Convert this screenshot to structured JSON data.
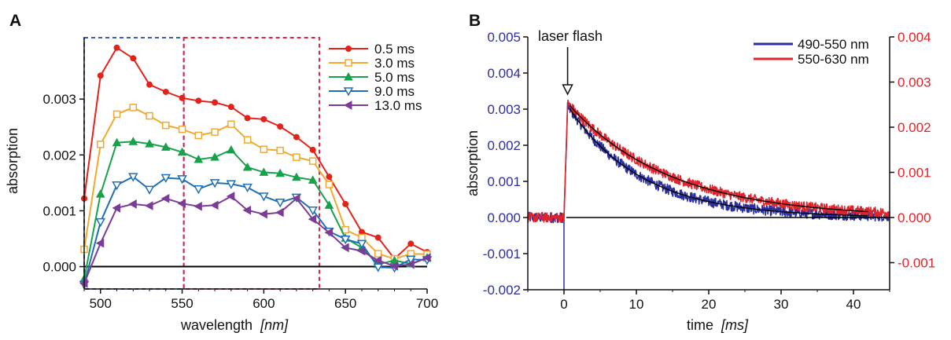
{
  "chart_data": [
    {
      "type": "line",
      "panel_label": "A",
      "xlabel_main": "wavelength",
      "xlabel_unit": "[nm]",
      "ylabel": "absorption",
      "xlim": [
        490,
        700
      ],
      "ylim": [
        -0.0004,
        0.0041
      ],
      "x_ticks": [
        500,
        550,
        600,
        650,
        700
      ],
      "x_tick_labels": [
        "500",
        "550",
        "600",
        "650",
        "700"
      ],
      "y_ticks": [
        0,
        0.001,
        0.002,
        0.003
      ],
      "y_tick_labels": [
        "0.000",
        "0.001",
        "0.002",
        "0.003"
      ],
      "grid": false,
      "legend_position": "top-right",
      "x": [
        490,
        500,
        510,
        520,
        530,
        540,
        550,
        560,
        570,
        580,
        590,
        600,
        610,
        620,
        630,
        640,
        650,
        660,
        670,
        680,
        690,
        700
      ],
      "series": [
        {
          "name": "0.5 ms",
          "color": "#e3231b",
          "marker": "circle",
          "values": [
            0.00122,
            0.00342,
            0.00392,
            0.00373,
            0.00326,
            0.00313,
            0.00302,
            0.00297,
            0.00294,
            0.00286,
            0.00266,
            0.00264,
            0.00251,
            0.00232,
            0.00209,
            0.00161,
            0.00112,
            0.00062,
            0.00052,
            0.00014,
            0.00041,
            0.00026
          ]
        },
        {
          "name": "3.0 ms",
          "color": "#f0a92e",
          "marker": "square",
          "values": [
            0.00031,
            0.00219,
            0.00273,
            0.00285,
            0.0027,
            0.00253,
            0.00246,
            0.00235,
            0.00241,
            0.00255,
            0.00227,
            0.0021,
            0.00208,
            0.00196,
            0.00189,
            0.00147,
            0.00066,
            0.00052,
            0.00023,
            0.00014,
            0.00023,
            0.00022
          ]
        },
        {
          "name": "5.0 ms",
          "color": "#17a14a",
          "marker": "triangle-up",
          "values": [
            -0.00022,
            0.0013,
            0.00222,
            0.00224,
            0.0022,
            0.00214,
            0.00205,
            0.00192,
            0.00196,
            0.00209,
            0.00178,
            0.00169,
            0.00167,
            0.0016,
            0.00155,
            0.0011,
            0.00051,
            0.00034,
            4e-05,
            0.00011,
            5e-05,
            0.00016
          ]
        },
        {
          "name": "9.0 ms",
          "color": "#1f6fb5",
          "marker": "triangle-down",
          "values": [
            -0.00032,
            0.0008,
            0.00146,
            0.00161,
            0.00138,
            0.00159,
            0.00157,
            0.00139,
            0.0015,
            0.00148,
            0.00142,
            0.00126,
            0.00115,
            0.00124,
            0.00101,
            0.00063,
            0.00049,
            0.00041,
            -1e-05,
            -2e-05,
            0.00013,
            0.00012
          ]
        },
        {
          "name": "13.0 ms",
          "color": "#7b3c99",
          "marker": "triangle-left",
          "values": [
            -0.0003,
            0.00042,
            0.00105,
            0.00112,
            0.00109,
            0.00122,
            0.00113,
            0.00108,
            0.0011,
            0.00126,
            0.00101,
            0.00094,
            0.00097,
            0.00122,
            0.00085,
            0.00061,
            0.00034,
            0.00028,
            0.00011,
            1e-05,
            4e-05,
            0.00016
          ]
        }
      ],
      "annotations": [
        {
          "type": "dashed-box",
          "color": "#3a5fb0",
          "x_range": [
            490,
            551
          ]
        },
        {
          "type": "dashed-box",
          "color": "#e3233d",
          "x_range": [
            551,
            634
          ]
        }
      ]
    },
    {
      "type": "line",
      "panel_label": "B",
      "xlabel_main": "time",
      "xlabel_unit": "[ms]",
      "ylabel": "absorption",
      "annotation_text": "laser flash",
      "annotation_x": 0.5,
      "xlim": [
        -5,
        45
      ],
      "ylim_left": [
        -0.002,
        0.005
      ],
      "ylim_right": [
        -0.0016,
        0.004
      ],
      "x_ticks": [
        0,
        10,
        20,
        30,
        40
      ],
      "x_tick_labels": [
        "0",
        "10",
        "20",
        "30",
        "40"
      ],
      "y_ticks_left": [
        -0.002,
        -0.001,
        0,
        0.001,
        0.002,
        0.003,
        0.004,
        0.005
      ],
      "y_tick_labels_left": [
        "-0.002",
        "-0.001",
        "0.000",
        "0.001",
        "0.002",
        "0.003",
        "0.004",
        "0.005"
      ],
      "y_ticks_right": [
        -0.001,
        0,
        0.001,
        0.002,
        0.003,
        0.004
      ],
      "y_tick_labels_right": [
        "-0.001",
        "0.000",
        "0.001",
        "0.002",
        "0.003",
        "0.004"
      ],
      "grid": false,
      "legend_position": "top-right",
      "series": [
        {
          "name": "490-550 nm",
          "color": "#2b2f9c",
          "axis": "left",
          "peak": 0.0031,
          "tau_ms": 10.0,
          "noise": 9e-05
        },
        {
          "name": "550-630 nm",
          "color": "#e0242b",
          "axis": "right",
          "peak": 0.00253,
          "tau_ms": 14.0,
          "noise": 7e-05
        }
      ],
      "fits": [
        {
          "color": "#000000",
          "axis": "left",
          "peak": 0.0031,
          "tau_ms": 10.0,
          "x_range": [
            0.8,
            42
          ]
        },
        {
          "color": "#000000",
          "axis": "right",
          "peak": 0.00253,
          "tau_ms": 14.0,
          "x_range": [
            0.8,
            42
          ]
        }
      ]
    }
  ],
  "colors": {
    "left_axis": "#2b2f9c",
    "right_axis": "#e0242b",
    "baseline": "#000000"
  }
}
